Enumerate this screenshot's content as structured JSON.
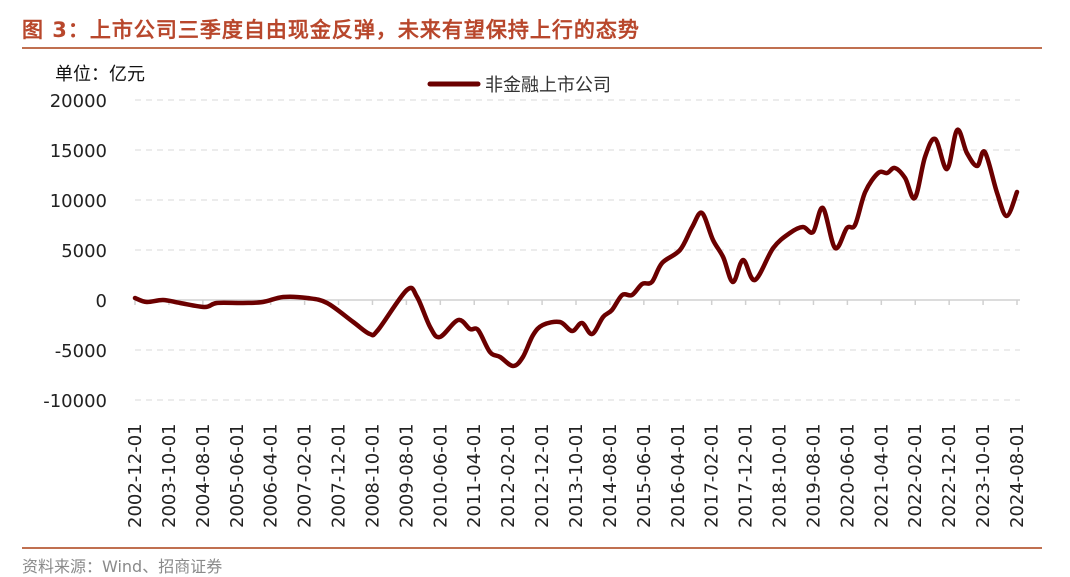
{
  "title": "图 3：上市公司三季度自由现金反弹，未来有望保持上行的态势",
  "source": "资料来源：Wind、招商证券",
  "colors": {
    "line": "#6B0000",
    "title": "#B8472C"
  },
  "chart_data": {
    "type": "line",
    "unit_label": "单位：亿元",
    "ylim": [
      -10000,
      20000
    ],
    "yticks": [
      "20000",
      "15000",
      "10000",
      "5000",
      "0",
      "-5000",
      "-10000"
    ],
    "ytick_values": [
      20000,
      15000,
      10000,
      5000,
      0,
      -5000,
      -10000
    ],
    "xticks": [
      "2002-12-01",
      "2003-10-01",
      "2004-08-01",
      "2005-06-01",
      "2006-04-01",
      "2007-02-01",
      "2007-12-01",
      "2008-10-01",
      "2009-08-01",
      "2010-06-01",
      "2011-04-01",
      "2012-02-01",
      "2012-12-01",
      "2013-10-01",
      "2014-08-01",
      "2015-06-01",
      "2016-04-01",
      "2017-02-01",
      "2017-12-01",
      "2018-10-01",
      "2019-08-01",
      "2020-06-01",
      "2021-04-01",
      "2022-02-01",
      "2022-12-01",
      "2023-10-01",
      "2024-08-01"
    ],
    "xlim_decimal_year": [
      2002.92,
      2024.59
    ],
    "grid": "horizontal dashed",
    "legend_position": "top-center",
    "series": [
      {
        "name": "非金融上市公司",
        "x": [
          2002.92,
          2003.21,
          2003.61,
          2004.03,
          2004.64,
          2004.93,
          2005.57,
          2006.06,
          2006.56,
          2007.15,
          2007.64,
          2008.28,
          2008.69,
          2008.89,
          2009.6,
          2009.85,
          2010.17,
          2010.41,
          2010.86,
          2011.15,
          2011.35,
          2011.64,
          2011.89,
          2012.21,
          2012.45,
          2012.7,
          2012.94,
          2013.36,
          2013.66,
          2013.9,
          2014.15,
          2014.42,
          2014.64,
          2014.89,
          2015.13,
          2015.38,
          2015.62,
          2015.87,
          2016.31,
          2016.61,
          2016.85,
          2017.12,
          2017.37,
          2017.61,
          2017.86,
          2018.15,
          2018.6,
          2019.01,
          2019.33,
          2019.58,
          2019.82,
          2020.12,
          2020.41,
          2020.61,
          2020.86,
          2021.18,
          2021.4,
          2021.59,
          2021.84,
          2022.08,
          2022.33,
          2022.58,
          2022.87,
          2023.12,
          2023.36,
          2023.61,
          2023.8,
          2024.1,
          2024.34,
          2024.59
        ],
        "y": [
          200,
          -200,
          0,
          -300,
          -700,
          -300,
          -300,
          -200,
          300,
          200,
          -300,
          -2200,
          -3400,
          -3000,
          1000,
          300,
          -2700,
          -3700,
          -2000,
          -2900,
          -3000,
          -5200,
          -5700,
          -6600,
          -5700,
          -3500,
          -2500,
          -2200,
          -3100,
          -2300,
          -3400,
          -1700,
          -1000,
          500,
          500,
          1600,
          1800,
          3700,
          5000,
          7300,
          8700,
          6000,
          4300,
          1800,
          4000,
          2000,
          5200,
          6700,
          7300,
          6800,
          9200,
          5200,
          7200,
          7500,
          10800,
          12700,
          12700,
          13200,
          12200,
          10200,
          14300,
          16100,
          13100,
          17000,
          14700,
          13400,
          14800,
          10700,
          8400,
          10800
        ]
      }
    ]
  }
}
